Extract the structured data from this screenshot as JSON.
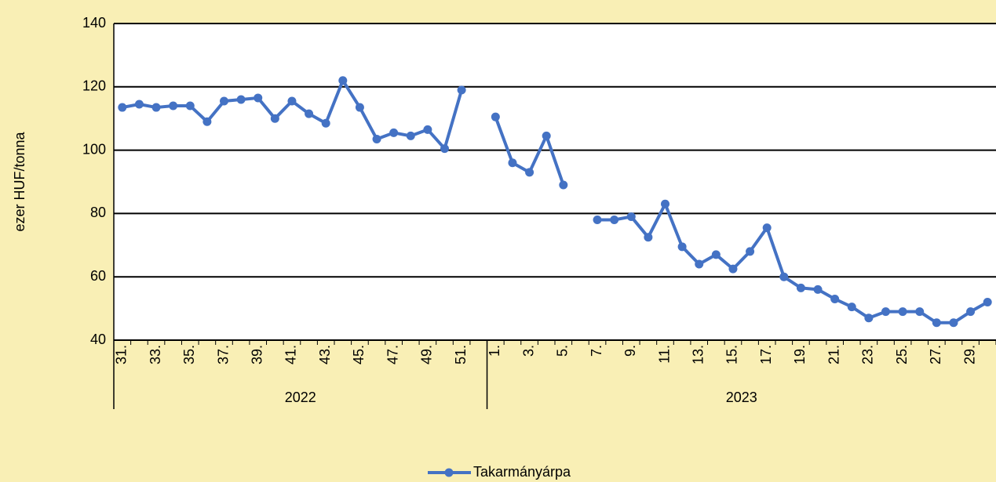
{
  "chart_data": {
    "type": "line",
    "y_label": "ezer HUF/tonna",
    "groups": [
      {
        "label": "2022",
        "categories": [
          "31.",
          null,
          "33.",
          null,
          "35.",
          null,
          "37.",
          null,
          "39.",
          null,
          "41.",
          null,
          "43.",
          null,
          "45.",
          null,
          "47.",
          null,
          "49.",
          null,
          "51.",
          null
        ]
      },
      {
        "label": "2023",
        "categories": [
          "1.",
          null,
          "3.",
          null,
          "5.",
          null,
          "7.",
          null,
          "9.",
          null,
          "11.",
          null,
          "13.",
          null,
          "15.",
          null,
          "17.",
          null,
          "19.",
          null,
          "21.",
          null,
          "23.",
          null,
          "25.",
          null,
          "27.",
          null,
          "29.",
          null
        ]
      }
    ],
    "series": [
      {
        "name": "Takarmányárpa",
        "color": "#4472c4",
        "values": [
          113.5,
          114.5,
          113.5,
          114,
          114,
          109,
          115.5,
          116,
          116.5,
          110,
          115.5,
          111.5,
          108.5,
          122,
          113.5,
          103.5,
          105.5,
          104.5,
          106.5,
          100.5,
          119,
          null,
          110.5,
          96,
          93,
          104.5,
          89,
          null,
          78,
          78,
          79,
          72.5,
          83,
          69.5,
          64,
          67,
          62.5,
          68,
          75.5,
          60,
          56.5,
          56,
          53,
          50.5,
          47,
          49,
          49,
          49,
          45.5,
          45.5,
          49,
          52
        ]
      }
    ],
    "ylim": [
      40,
      140
    ],
    "yticks": [
      40,
      60,
      80,
      100,
      120,
      140
    ],
    "grid": true,
    "legend": "bottom"
  }
}
